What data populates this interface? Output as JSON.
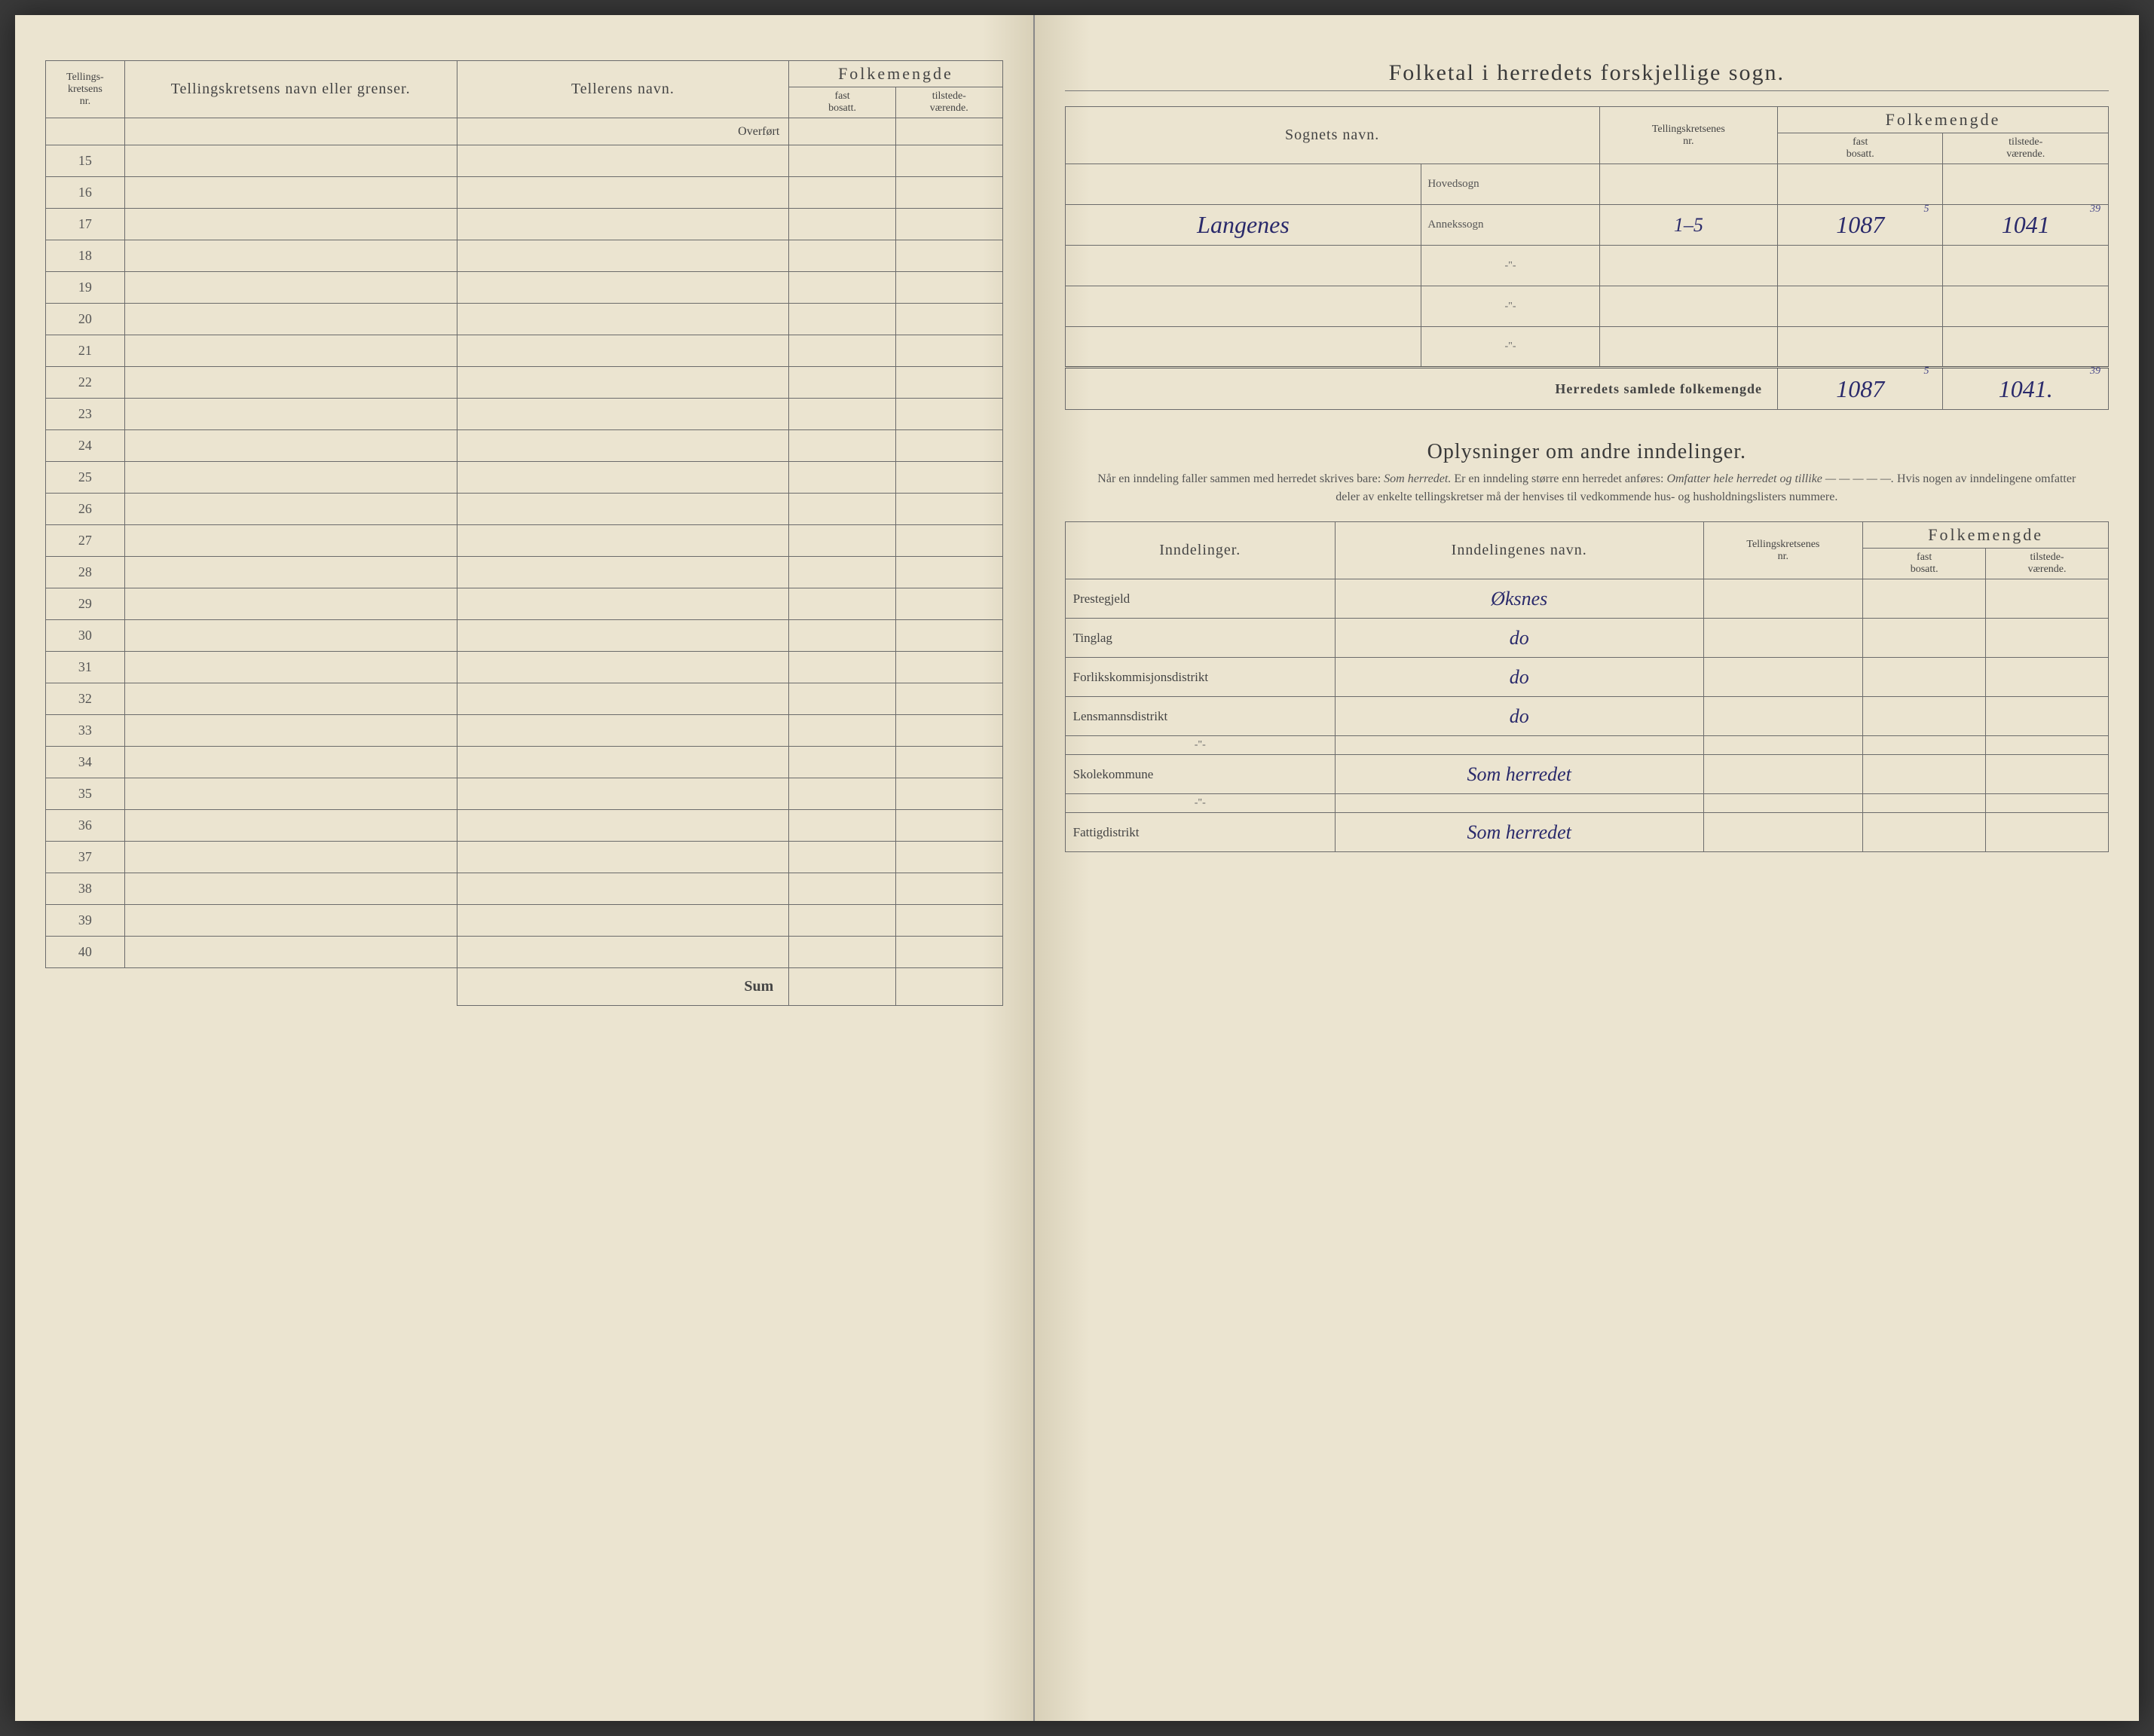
{
  "left_page": {
    "headers": {
      "col1_line1": "Tellings-",
      "col1_line2": "kretsens",
      "col1_line3": "nr.",
      "col2": "Tellingskretsens navn eller grenser.",
      "col3": "Tellerens navn.",
      "col4_group": "Folkemengde",
      "col4a_line1": "fast",
      "col4a_line2": "bosatt.",
      "col4b_line1": "tilstede-",
      "col4b_line2": "værende."
    },
    "overfort_label": "Overført",
    "row_start": 15,
    "row_end": 40,
    "sum_label": "Sum"
  },
  "right_page": {
    "title": "Folketal i herredets forskjellige sogn.",
    "sogn_headers": {
      "col1": "Sognets navn.",
      "col2_line1": "Tellingskretsenes",
      "col2_line2": "nr.",
      "col3_group": "Folkemengde",
      "col3a_line1": "fast",
      "col3a_line2": "bosatt.",
      "col3b_line1": "tilstede-",
      "col3b_line2": "værende."
    },
    "sogn_rows": [
      {
        "label": "Hovedsogn",
        "name": "",
        "krets": "",
        "fast": "",
        "tilstede": ""
      },
      {
        "label": "Annekssogn",
        "name": "Langenes",
        "krets": "1–5",
        "fast": "1087",
        "tilstede": "1041"
      },
      {
        "label": "-\"-",
        "name": "",
        "krets": "",
        "fast": "",
        "tilstede": ""
      },
      {
        "label": "-\"-",
        "name": "",
        "krets": "",
        "fast": "",
        "tilstede": ""
      },
      {
        "label": "-\"-",
        "name": "",
        "krets": "",
        "fast": "",
        "tilstede": ""
      }
    ],
    "corrections": {
      "fast_anneks": "5",
      "tilstede_anneks": "39",
      "fast_total": "5",
      "tilstede_total": "39"
    },
    "total_label": "Herredets samlede folkemengde",
    "total_fast": "1087",
    "total_tilstede": "1041.",
    "section2_title": "Oplysninger om andre inndelinger.",
    "instructions": "Når en inndeling faller sammen med herredet skrives bare: <em>Som herredet.</em> Er en inndeling større enn herredet anføres: <em>Omfatter hele herredet og tillike — — — — —.</em> Hvis nogen av inndelingene omfatter deler av enkelte tellingskretser må der henvises til vedkommende hus- og husholdningslisters nummere.",
    "ind_headers": {
      "col1": "Inndelinger.",
      "col2": "Inndelingenes navn.",
      "col3_line1": "Tellingskretsenes",
      "col3_line2": "nr.",
      "col4_group": "Folkemengde",
      "col4a_line1": "fast",
      "col4a_line2": "bosatt.",
      "col4b_line1": "tilstede-",
      "col4b_line2": "værende."
    },
    "ind_rows": [
      {
        "label": "Prestegjeld",
        "value": "Øksnes"
      },
      {
        "label": "Tinglag",
        "value": "do"
      },
      {
        "label": "Forlikskommisjonsdistrikt",
        "value": "do"
      },
      {
        "label": "Lensmannsdistrikt",
        "value": "do"
      },
      {
        "label": "-\"-",
        "value": ""
      },
      {
        "label": "Skolekommune",
        "value": "Som herredet"
      },
      {
        "label": "-\"-",
        "value": ""
      },
      {
        "label": "Fattigdistrikt",
        "value": "Som herredet"
      }
    ]
  },
  "colors": {
    "paper": "#ebe4d0",
    "ink_print": "#444444",
    "ink_hand": "#2a2a6b",
    "border": "#6b6b6b"
  }
}
